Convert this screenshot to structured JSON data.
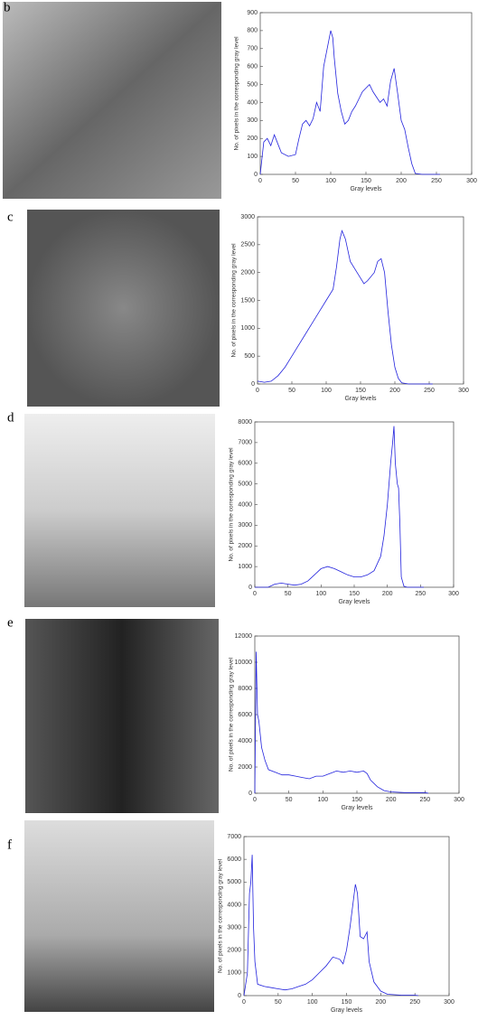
{
  "chart_data": [
    {
      "type": "line",
      "panel_label": "b",
      "xlabel": "Gray levels",
      "ylabel": "No. of pixels in the corresponding gray level",
      "color": "#2222dd",
      "xlim": [
        0,
        300
      ],
      "ylim": [
        0,
        900
      ],
      "xticks": [
        0,
        50,
        100,
        150,
        200,
        250,
        300
      ],
      "yticks": [
        0,
        100,
        200,
        300,
        400,
        500,
        600,
        700,
        800,
        900
      ],
      "x": [
        0,
        5,
        10,
        15,
        20,
        25,
        30,
        40,
        50,
        55,
        60,
        65,
        70,
        75,
        80,
        85,
        90,
        95,
        100,
        103,
        105,
        110,
        115,
        120,
        125,
        130,
        135,
        140,
        145,
        150,
        155,
        160,
        165,
        170,
        175,
        180,
        185,
        190,
        195,
        200,
        205,
        210,
        215,
        220,
        230,
        250,
        255
      ],
      "values": [
        0,
        180,
        200,
        160,
        220,
        170,
        120,
        100,
        110,
        200,
        280,
        300,
        270,
        310,
        400,
        350,
        600,
        700,
        800,
        760,
        650,
        450,
        350,
        280,
        300,
        350,
        380,
        420,
        460,
        480,
        500,
        460,
        430,
        400,
        420,
        380,
        520,
        590,
        450,
        300,
        250,
        150,
        60,
        5,
        0,
        0,
        0
      ]
    },
    {
      "type": "line",
      "panel_label": "c",
      "xlabel": "Gray levels",
      "ylabel": "No. of pixels in the corresponding gray level",
      "color": "#2222dd",
      "xlim": [
        0,
        300
      ],
      "ylim": [
        0,
        3000
      ],
      "xticks": [
        0,
        50,
        100,
        150,
        200,
        250,
        300
      ],
      "yticks": [
        0,
        500,
        1000,
        1500,
        2000,
        2500,
        3000
      ],
      "x": [
        0,
        10,
        20,
        30,
        40,
        50,
        60,
        70,
        80,
        90,
        100,
        110,
        115,
        120,
        123,
        128,
        135,
        145,
        150,
        155,
        160,
        170,
        175,
        180,
        185,
        190,
        195,
        200,
        205,
        210,
        220,
        255
      ],
      "values": [
        50,
        30,
        50,
        150,
        300,
        500,
        700,
        900,
        1100,
        1300,
        1500,
        1700,
        2100,
        2600,
        2750,
        2600,
        2200,
        2000,
        1900,
        1800,
        1850,
        2000,
        2200,
        2250,
        2000,
        1300,
        700,
        300,
        100,
        20,
        0,
        0
      ]
    },
    {
      "type": "line",
      "panel_label": "d",
      "xlabel": "Gray levels",
      "ylabel": "No. of pixels in the corresponding gray level",
      "color": "#2222dd",
      "xlim": [
        0,
        300
      ],
      "ylim": [
        0,
        8000
      ],
      "xticks": [
        0,
        50,
        100,
        150,
        200,
        250,
        300
      ],
      "yticks": [
        0,
        1000,
        2000,
        3000,
        4000,
        5000,
        6000,
        7000,
        8000
      ],
      "x": [
        0,
        20,
        30,
        40,
        50,
        60,
        70,
        80,
        90,
        100,
        110,
        120,
        130,
        140,
        150,
        160,
        170,
        180,
        190,
        195,
        200,
        205,
        208,
        210,
        212,
        215,
        217,
        219,
        221,
        225,
        230,
        255
      ],
      "values": [
        0,
        0,
        150,
        200,
        150,
        100,
        150,
        300,
        600,
        900,
        1000,
        900,
        750,
        600,
        500,
        500,
        600,
        800,
        1500,
        2500,
        4000,
        6000,
        7000,
        7800,
        6000,
        5000,
        4800,
        3000,
        500,
        50,
        0,
        0
      ]
    },
    {
      "type": "line",
      "panel_label": "e",
      "xlabel": "Gray levels",
      "ylabel": "No. of pixels in the corresponding gray level",
      "color": "#2222dd",
      "xlim": [
        0,
        300
      ],
      "ylim": [
        0,
        12000
      ],
      "xticks": [
        0,
        50,
        100,
        150,
        200,
        250,
        300
      ],
      "yticks": [
        0,
        2000,
        4000,
        6000,
        8000,
        10000,
        12000
      ],
      "x": [
        0,
        2,
        4,
        6,
        8,
        10,
        15,
        20,
        30,
        40,
        50,
        60,
        70,
        80,
        90,
        100,
        110,
        120,
        130,
        140,
        150,
        160,
        165,
        170,
        180,
        190,
        200,
        220,
        250,
        255
      ],
      "values": [
        0,
        10800,
        6000,
        5500,
        4500,
        3500,
        2500,
        1800,
        1600,
        1400,
        1400,
        1300,
        1200,
        1100,
        1300,
        1300,
        1500,
        1700,
        1600,
        1700,
        1600,
        1700,
        1500,
        1000,
        500,
        200,
        100,
        50,
        50,
        0
      ]
    },
    {
      "type": "line",
      "panel_label": "f",
      "xlabel": "Gray levels",
      "ylabel": "No. of pixels in the corresponding gray level",
      "color": "#2222dd",
      "xlim": [
        0,
        300
      ],
      "ylim": [
        0,
        7000
      ],
      "xticks": [
        0,
        50,
        100,
        150,
        200,
        250,
        300
      ],
      "yticks": [
        0,
        1000,
        2000,
        3000,
        4000,
        5000,
        6000,
        7000
      ],
      "x": [
        0,
        5,
        8,
        10,
        12,
        14,
        16,
        20,
        30,
        40,
        50,
        60,
        70,
        80,
        90,
        100,
        110,
        120,
        130,
        140,
        145,
        150,
        155,
        160,
        163,
        166,
        170,
        175,
        180,
        183,
        190,
        200,
        210,
        230,
        250,
        255
      ],
      "values": [
        0,
        1000,
        4500,
        5000,
        6200,
        3000,
        1500,
        500,
        400,
        350,
        300,
        250,
        300,
        400,
        500,
        700,
        1000,
        1300,
        1700,
        1600,
        1400,
        2000,
        3000,
        4200,
        4900,
        4500,
        2600,
        2500,
        2800,
        1500,
        600,
        200,
        60,
        20,
        20,
        0
      ]
    }
  ]
}
